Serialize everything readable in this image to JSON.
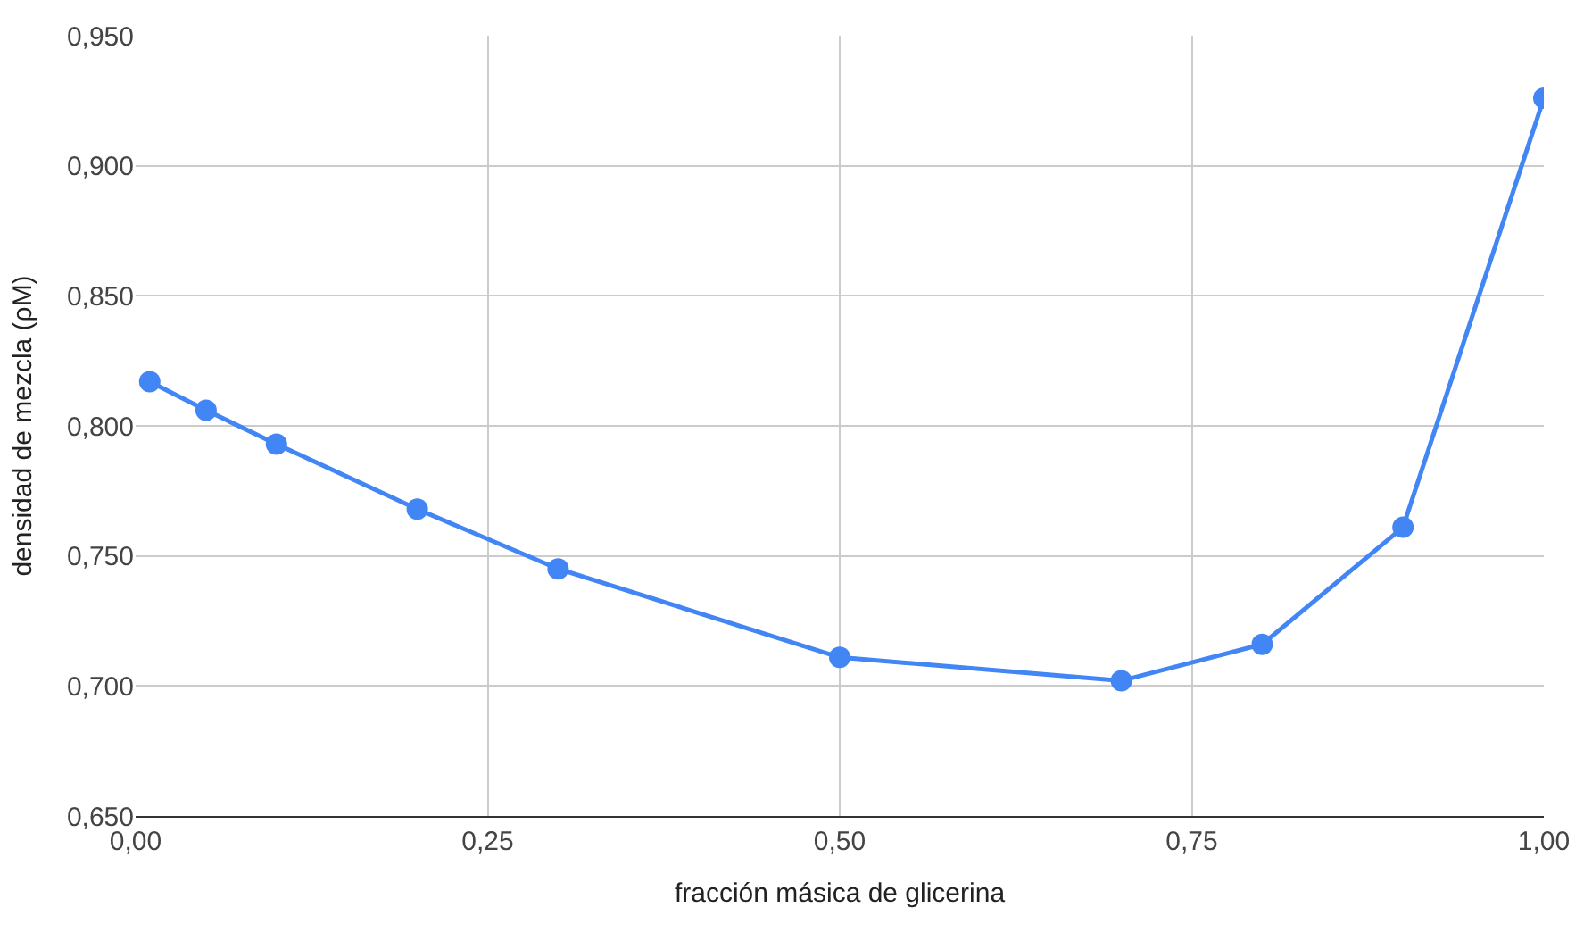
{
  "chart_data": {
    "type": "line",
    "xlabel": "fracción másica de glicerina",
    "ylabel": "densidad de mezcla (ρM)",
    "x": [
      0.01,
      0.05,
      0.1,
      0.2,
      0.3,
      0.5,
      0.7,
      0.8,
      0.9,
      1.0
    ],
    "series": [
      {
        "color": "#4285f4",
        "values": [
          0.817,
          0.806,
          0.793,
          0.768,
          0.745,
          0.711,
          0.702,
          0.716,
          0.761,
          0.926
        ]
      }
    ],
    "xlim": [
      0,
      1
    ],
    "xticks": [
      {
        "value": 0,
        "label": "0,00"
      },
      {
        "value": 0.25,
        "label": "0,25"
      },
      {
        "value": 0.5,
        "label": "0,50"
      },
      {
        "value": 0.75,
        "label": "0,75"
      },
      {
        "value": 1,
        "label": "1,00"
      }
    ],
    "ylim": [
      0.65,
      0.95
    ],
    "yticks": [
      {
        "value": 0.65,
        "label": "0,650"
      },
      {
        "value": 0.7,
        "label": "0,700"
      },
      {
        "value": 0.75,
        "label": "0,750"
      },
      {
        "value": 0.8,
        "label": "0,800"
      },
      {
        "value": 0.85,
        "label": "0,850"
      },
      {
        "value": 0.9,
        "label": "0,900"
      },
      {
        "value": 0.95,
        "label": "0,950"
      }
    ],
    "grid": true,
    "marker": "circle",
    "line_style": "solid"
  }
}
